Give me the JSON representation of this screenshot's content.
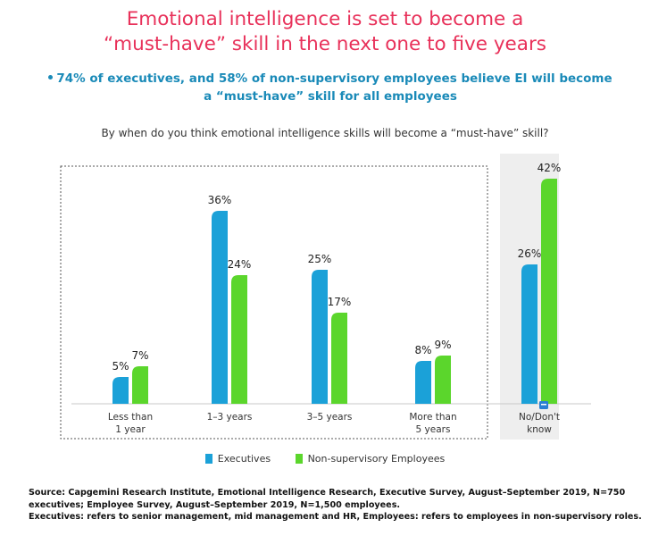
{
  "header": {
    "title_line1": "Emotional intelligence is set to become a",
    "title_line2": "“must-have” skill in the next one to five years",
    "subtitle_line1": "74% of executives, and 58% of non-supervisory employees believe EI will become",
    "subtitle_line2": "a “must-have” skill for all employees",
    "question": "By when do you think emotional intelligence skills will become a “must-have” skill?"
  },
  "chart_data": {
    "type": "bar",
    "title": "By when do you think emotional intelligence skills will become a “must-have” skill?",
    "categories": [
      [
        "Less than",
        "1 year"
      ],
      [
        "1–3 years"
      ],
      [
        "3–5 years"
      ],
      [
        "More than",
        "5 years"
      ],
      [
        "No/Don't",
        "know"
      ]
    ],
    "series": [
      {
        "name": "Executives",
        "color": "#1ba1d8",
        "values": [
          5,
          36,
          25,
          8,
          26
        ],
        "labels": [
          "5%",
          "36%",
          "25%",
          "8%",
          "26%"
        ]
      },
      {
        "name": "Non-supervisory Employees",
        "color": "#5bd62c",
        "values": [
          7,
          24,
          17,
          9,
          42
        ],
        "labels": [
          "7%",
          "24%",
          "17%",
          "9%",
          "42%"
        ]
      }
    ],
    "ylim": [
      0,
      45
    ],
    "unit": "%",
    "grouped_box": "first four categories enclosed in dotted box",
    "highlight": "last category shaded"
  },
  "legend": {
    "executives": "Executives",
    "employees": "Non-supervisory Employees"
  },
  "source": {
    "line1": "Source: Capgemini Research Institute, Emotional Intelligence Research, Executive Survey, August–September 2019, N=750",
    "line2": "executives; Employee Survey, August–September 2019, N=1,500 employees.",
    "line3": "Executives: refers to senior management, mid management and HR, Employees: refers to employees in non-supervisory roles."
  },
  "colors": {
    "title": "#e8315a",
    "subtitle": "#1a8ab8",
    "executives": "#1ba1d8",
    "employees": "#5bd62c"
  }
}
